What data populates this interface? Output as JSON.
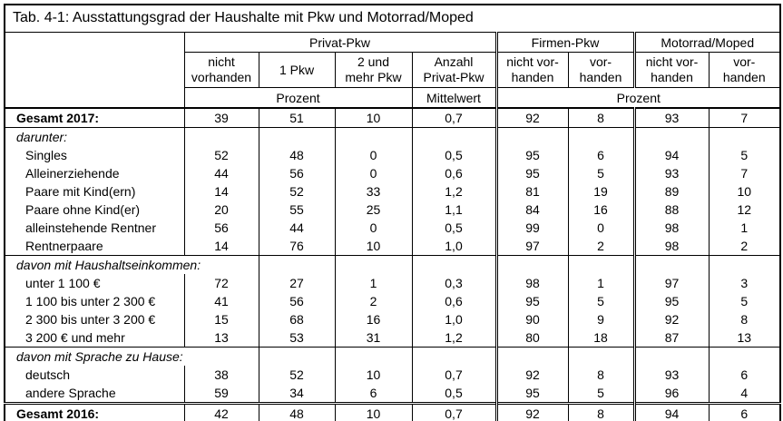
{
  "colors": {
    "background": "#ffffff",
    "border": "#000000",
    "text": "#000000"
  },
  "table": {
    "title": "Tab. 4-1: Ausstattungsgrad der Haushalte mit Pkw und Motorrad/Moped",
    "header": {
      "groups": [
        {
          "label": "Privat-Pkw",
          "span": 4
        },
        {
          "label": "Firmen-Pkw",
          "span": 2
        },
        {
          "label": "Motorrad/Moped",
          "span": 2
        }
      ],
      "columns": [
        "nicht\nvorhanden",
        "1 Pkw",
        "2 und\nmehr Pkw",
        "Anzahl\nPrivat-Pkw",
        "nicht vor-\nhanden",
        "vor-\nhanden",
        "nicht vor-\nhanden",
        "vor-\nhanden"
      ],
      "units": [
        {
          "label": "Prozent",
          "span": 3
        },
        {
          "label": "Mittelwert",
          "span": 1
        },
        {
          "label": "Prozent",
          "span": 4
        }
      ]
    },
    "rows": [
      {
        "type": "total",
        "label": "Gesamt 2017:",
        "label_span": 1,
        "values": [
          "39",
          "51",
          "10",
          "0,7",
          "92",
          "8",
          "93",
          "7"
        ]
      },
      {
        "type": "section",
        "label": "darunter:",
        "label_span": 1,
        "values": [
          "",
          "",
          "",
          "",
          "",
          "",
          "",
          ""
        ]
      },
      {
        "type": "data",
        "label": "Singles",
        "label_span": 1,
        "values": [
          "52",
          "48",
          "0",
          "0,5",
          "95",
          "6",
          "94",
          "5"
        ]
      },
      {
        "type": "data",
        "label": "Alleinerziehende",
        "label_span": 1,
        "values": [
          "44",
          "56",
          "0",
          "0,6",
          "95",
          "5",
          "93",
          "7"
        ]
      },
      {
        "type": "data",
        "label": "Paare mit Kind(ern)",
        "label_span": 1,
        "values": [
          "14",
          "52",
          "33",
          "1,2",
          "81",
          "19",
          "89",
          "10"
        ]
      },
      {
        "type": "data",
        "label": "Paare ohne Kind(er)",
        "label_span": 1,
        "values": [
          "20",
          "55",
          "25",
          "1,1",
          "84",
          "16",
          "88",
          "12"
        ]
      },
      {
        "type": "data",
        "label": "alleinstehende Rentner",
        "label_span": 1,
        "values": [
          "56",
          "44",
          "0",
          "0,5",
          "99",
          "0",
          "98",
          "1"
        ]
      },
      {
        "type": "data",
        "label": "Rentnerpaare",
        "label_span": 1,
        "values": [
          "14",
          "76",
          "10",
          "1,0",
          "97",
          "2",
          "98",
          "2"
        ]
      },
      {
        "type": "section",
        "label": "davon mit Haushaltseinkommen:",
        "label_span": 2,
        "values": [
          "",
          "",
          "",
          "",
          "",
          "",
          "",
          ""
        ]
      },
      {
        "type": "data",
        "label": "unter 1 100 €",
        "label_span": 1,
        "values": [
          "72",
          "27",
          "1",
          "0,3",
          "98",
          "1",
          "97",
          "3"
        ]
      },
      {
        "type": "data",
        "label": "1 100 bis unter 2 300 €",
        "label_span": 1,
        "values": [
          "41",
          "56",
          "2",
          "0,6",
          "95",
          "5",
          "95",
          "5"
        ]
      },
      {
        "type": "data",
        "label": "2 300 bis unter 3 200 €",
        "label_span": 1,
        "values": [
          "15",
          "68",
          "16",
          "1,0",
          "90",
          "9",
          "92",
          "8"
        ]
      },
      {
        "type": "data",
        "label": "3 200 € und mehr",
        "label_span": 1,
        "values": [
          "13",
          "53",
          "31",
          "1,2",
          "80",
          "18",
          "87",
          "13"
        ]
      },
      {
        "type": "section",
        "label": "davon mit Sprache zu Hause:",
        "label_span": 2,
        "values": [
          "",
          "",
          "",
          "",
          "",
          "",
          "",
          ""
        ]
      },
      {
        "type": "data",
        "label": "deutsch",
        "label_span": 1,
        "values": [
          "38",
          "52",
          "10",
          "0,7",
          "92",
          "8",
          "93",
          "6"
        ]
      },
      {
        "type": "data",
        "label": "andere Sprache",
        "label_span": 1,
        "values": [
          "59",
          "34",
          "6",
          "0,5",
          "95",
          "5",
          "96",
          "4"
        ]
      },
      {
        "type": "total2",
        "label": "Gesamt 2016:",
        "label_span": 1,
        "values": [
          "42",
          "48",
          "10",
          "0,7",
          "92",
          "8",
          "94",
          "6"
        ]
      }
    ]
  }
}
